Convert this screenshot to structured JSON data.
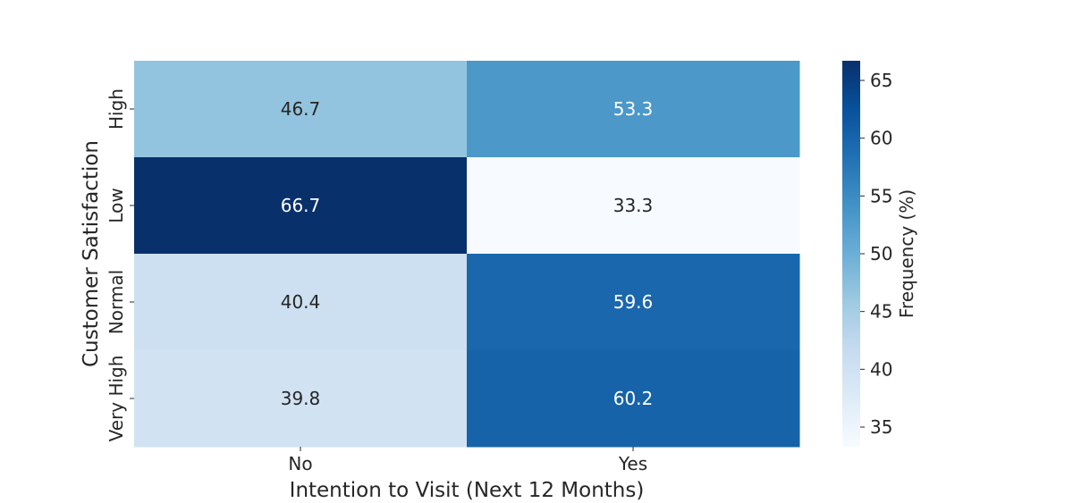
{
  "chart_data": {
    "type": "heatmap",
    "title": "",
    "xlabel": "Intention to Visit (Next 12 Months)",
    "ylabel": "Customer Satisfaction",
    "x_categories": [
      "No",
      "Yes"
    ],
    "y_categories": [
      "High",
      "Low",
      "Normal",
      "Very High"
    ],
    "values": [
      [
        46.7,
        53.3
      ],
      [
        66.7,
        33.3
      ],
      [
        40.4,
        59.6
      ],
      [
        39.8,
        60.2
      ]
    ],
    "value_labels": [
      [
        "46.7",
        "53.3"
      ],
      [
        "66.7",
        "33.3"
      ],
      [
        "40.4",
        "59.6"
      ],
      [
        "39.8",
        "60.2"
      ]
    ],
    "colorbar": {
      "label": "Frequency (%)",
      "min": 33.3,
      "max": 66.7,
      "ticks": [
        35,
        40,
        45,
        50,
        55,
        60,
        65
      ],
      "tick_labels": [
        "35",
        "40",
        "45",
        "50",
        "55",
        "60",
        "65"
      ]
    },
    "colormap": "Blues",
    "grid": false
  }
}
